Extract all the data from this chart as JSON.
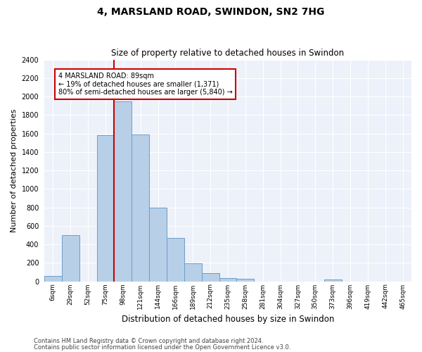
{
  "title": "4, MARSLAND ROAD, SWINDON, SN2 7HG",
  "subtitle": "Size of property relative to detached houses in Swindon",
  "xlabel": "Distribution of detached houses by size in Swindon",
  "ylabel": "Number of detached properties",
  "categories": [
    "6sqm",
    "29sqm",
    "52sqm",
    "75sqm",
    "98sqm",
    "121sqm",
    "144sqm",
    "166sqm",
    "189sqm",
    "212sqm",
    "235sqm",
    "258sqm",
    "281sqm",
    "304sqm",
    "327sqm",
    "350sqm",
    "373sqm",
    "396sqm",
    "419sqm",
    "442sqm",
    "465sqm"
  ],
  "bar_heights": [
    55,
    500,
    0,
    1580,
    1950,
    1590,
    800,
    470,
    195,
    90,
    35,
    25,
    0,
    0,
    0,
    0,
    20,
    0,
    0,
    0,
    0
  ],
  "bar_color": "#b8cfe8",
  "bar_edge_color": "#6a9ec9",
  "annotation_title": "4 MARSLAND ROAD: 89sqm",
  "annotation_line1": "← 19% of detached houses are smaller (1,371)",
  "annotation_line2": "80% of semi-detached houses are larger (5,840) →",
  "annotation_box_color": "#ffffff",
  "annotation_box_edge": "#cc0000",
  "redline_color": "#cc0000",
  "ylim": [
    0,
    2400
  ],
  "yticks": [
    0,
    200,
    400,
    600,
    800,
    1000,
    1200,
    1400,
    1600,
    1800,
    2000,
    2200,
    2400
  ],
  "ax_background_color": "#edf1f9",
  "fig_background_color": "#ffffff",
  "grid_color": "#ffffff",
  "footer1": "Contains HM Land Registry data © Crown copyright and database right 2024.",
  "footer2": "Contains public sector information licensed under the Open Government Licence v3.0.",
  "redline_bin_index": 4
}
